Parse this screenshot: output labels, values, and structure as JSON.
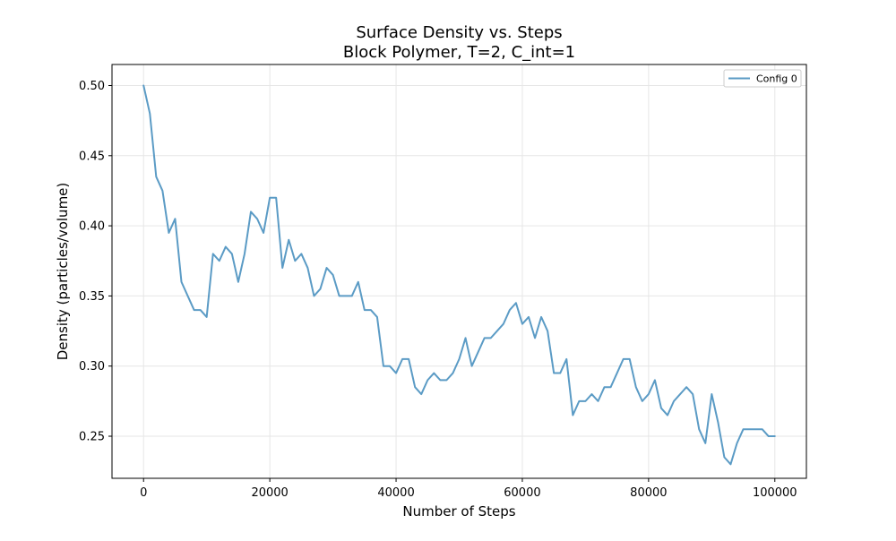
{
  "chart_data": {
    "type": "line",
    "title": "Surface Density vs. Steps",
    "subtitle": "Block Polymer, T=2, C_int=1",
    "xlabel": "Number of Steps",
    "ylabel": "Density (particles/volume)",
    "xlim": [
      -5000,
      105000
    ],
    "ylim": [
      0.22,
      0.515
    ],
    "xticks": [
      0,
      20000,
      40000,
      60000,
      80000,
      100000
    ],
    "xtick_labels": [
      "0",
      "20000",
      "40000",
      "60000",
      "80000",
      "100000"
    ],
    "yticks": [
      0.25,
      0.3,
      0.35,
      0.4,
      0.45,
      0.5
    ],
    "ytick_labels": [
      "0.25",
      "0.30",
      "0.35",
      "0.40",
      "0.45",
      "0.50"
    ],
    "grid": true,
    "legend_position": "top-right",
    "series": [
      {
        "name": "Config 0",
        "color": "#5b9bc5",
        "x": [
          0,
          1000,
          2000,
          3000,
          4000,
          5000,
          6000,
          7000,
          8000,
          9000,
          10000,
          11000,
          12000,
          13000,
          14000,
          15000,
          16000,
          17000,
          18000,
          19000,
          20000,
          21000,
          22000,
          23000,
          24000,
          25000,
          26000,
          27000,
          28000,
          29000,
          30000,
          31000,
          32000,
          33000,
          34000,
          35000,
          36000,
          37000,
          38000,
          39000,
          40000,
          41000,
          42000,
          43000,
          44000,
          45000,
          46000,
          47000,
          48000,
          49000,
          50000,
          51000,
          52000,
          53000,
          54000,
          55000,
          56000,
          57000,
          58000,
          59000,
          60000,
          61000,
          62000,
          63000,
          64000,
          65000,
          66000,
          67000,
          68000,
          69000,
          70000,
          71000,
          72000,
          73000,
          74000,
          75000,
          76000,
          77000,
          78000,
          79000,
          80000,
          81000,
          82000,
          83000,
          84000,
          85000,
          86000,
          87000,
          88000,
          89000,
          90000,
          91000,
          92000,
          93000,
          94000,
          95000,
          96000,
          97000,
          98000,
          99000,
          100000
        ],
        "y": [
          0.5,
          0.48,
          0.435,
          0.425,
          0.395,
          0.405,
          0.36,
          0.35,
          0.34,
          0.34,
          0.335,
          0.38,
          0.375,
          0.385,
          0.38,
          0.36,
          0.38,
          0.41,
          0.405,
          0.395,
          0.42,
          0.42,
          0.37,
          0.39,
          0.375,
          0.38,
          0.37,
          0.35,
          0.355,
          0.37,
          0.365,
          0.35,
          0.35,
          0.35,
          0.36,
          0.34,
          0.34,
          0.335,
          0.3,
          0.3,
          0.295,
          0.305,
          0.305,
          0.285,
          0.28,
          0.29,
          0.295,
          0.29,
          0.29,
          0.295,
          0.305,
          0.32,
          0.3,
          0.31,
          0.32,
          0.32,
          0.325,
          0.33,
          0.34,
          0.345,
          0.33,
          0.335,
          0.32,
          0.335,
          0.325,
          0.295,
          0.295,
          0.305,
          0.265,
          0.275,
          0.275,
          0.28,
          0.275,
          0.285,
          0.285,
          0.295,
          0.305,
          0.305,
          0.285,
          0.275,
          0.28,
          0.29,
          0.27,
          0.265,
          0.275,
          0.28,
          0.285,
          0.28,
          0.255,
          0.245,
          0.28,
          0.26,
          0.235,
          0.23,
          0.245,
          0.255,
          0.255,
          0.255,
          0.255,
          0.25,
          0.25
        ]
      }
    ]
  }
}
